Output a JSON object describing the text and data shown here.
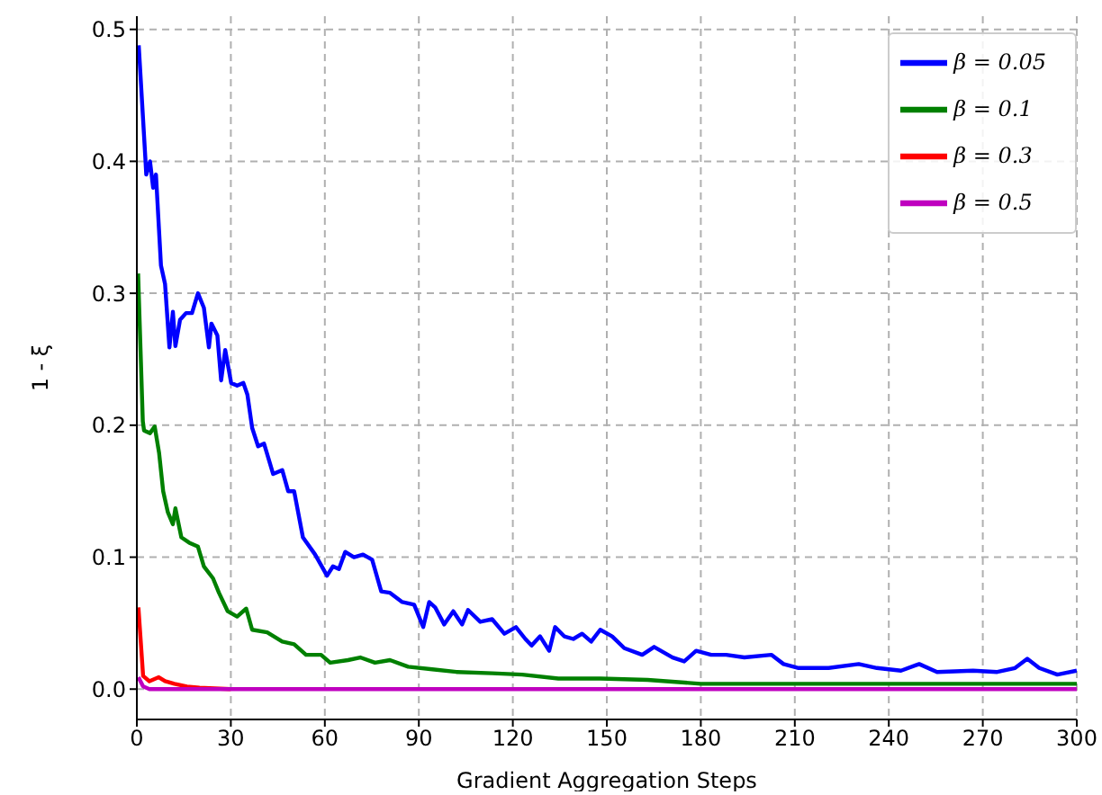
{
  "chart_data": {
    "type": "line",
    "xlabel": "Gradient Aggregation Steps",
    "ylabel": "1 - ξ",
    "xlim": [
      0,
      300
    ],
    "xticks": [
      0,
      30,
      60,
      90,
      120,
      150,
      180,
      210,
      240,
      270,
      300
    ],
    "ylim": [
      -0.023,
      0.51
    ],
    "yticks": [
      {
        "value": 0,
        "label": "0.0"
      },
      {
        "value": 0.1,
        "label": "0.1"
      },
      {
        "value": 0.2,
        "label": "0.2"
      },
      {
        "value": 0.3,
        "label": "0.3"
      },
      {
        "value": 0.4,
        "label": "0.4"
      },
      {
        "value": 0.5,
        "label": "0.5"
      }
    ],
    "grid": true,
    "legend": "top right",
    "line_style": "solid",
    "marker": "none",
    "series": [
      {
        "name": "β = 0.05",
        "color": "#0000ff",
        "x": [
          0.6,
          2.7,
          3,
          4.2,
          5.2,
          6.1,
          7.7,
          9,
          10.4,
          11.5,
          12.3,
          13.8,
          15.7,
          17.6,
          19.5,
          21.4,
          23,
          23.8,
          25.7,
          26.9,
          28.2,
          30.1,
          32,
          34,
          35.3,
          36.8,
          38.7,
          40.6,
          43.5,
          46.4,
          48.3,
          50.2,
          53,
          56.9,
          60.7,
          62.6,
          64.5,
          66.5,
          69.3,
          72.2,
          75.1,
          78,
          80.8,
          84.7,
          88.5,
          91.4,
          93.3,
          95.2,
          98.1,
          101,
          103.8,
          105.7,
          109.6,
          113.4,
          117.3,
          121,
          124,
          126,
          128.7,
          131.6,
          133.5,
          136.4,
          139.3,
          142.1,
          145,
          147.9,
          151.7,
          155.6,
          161.3,
          165.1,
          171,
          174.7,
          178.5,
          183.3,
          188.1,
          193.9,
          202.5,
          206.4,
          211.2,
          220.8,
          230.4,
          236.2,
          243.9,
          249.7,
          255.4,
          266.9,
          274.6,
          280.3,
          284.2,
          288,
          293.8,
          300
        ],
        "values": [
          0.488,
          0.403,
          0.39,
          0.4,
          0.38,
          0.39,
          0.321,
          0.307,
          0.259,
          0.286,
          0.26,
          0.28,
          0.285,
          0.285,
          0.3,
          0.289,
          0.259,
          0.277,
          0.268,
          0.234,
          0.257,
          0.232,
          0.23,
          0.232,
          0.223,
          0.198,
          0.184,
          0.186,
          0.163,
          0.166,
          0.15,
          0.15,
          0.115,
          0.102,
          0.086,
          0.093,
          0.091,
          0.104,
          0.1,
          0.102,
          0.098,
          0.074,
          0.073,
          0.066,
          0.064,
          0.047,
          0.066,
          0.062,
          0.049,
          0.059,
          0.049,
          0.06,
          0.051,
          0.053,
          0.042,
          0.047,
          0.038,
          0.033,
          0.04,
          0.029,
          0.047,
          0.04,
          0.038,
          0.042,
          0.036,
          0.045,
          0.04,
          0.031,
          0.026,
          0.032,
          0.024,
          0.021,
          0.029,
          0.026,
          0.026,
          0.024,
          0.026,
          0.019,
          0.016,
          0.016,
          0.019,
          0.016,
          0.014,
          0.019,
          0.013,
          0.014,
          0.013,
          0.016,
          0.023,
          0.016,
          0.011,
          0.014
        ]
      },
      {
        "name": "β = 0.1",
        "color": "#008000",
        "x": [
          0.4,
          1.9,
          2.3,
          4.2,
          5.7,
          7.1,
          8.4,
          9.9,
          11.5,
          12.3,
          14.2,
          16.7,
          19.5,
          21.4,
          24.3,
          26.2,
          29,
          32,
          34.9,
          36.8,
          41.6,
          46.4,
          50.2,
          54,
          58.8,
          61.7,
          67.4,
          71.3,
          76,
          80.8,
          86.6,
          94.3,
          102,
          113.4,
          123,
          134.5,
          147.9,
          163,
          180,
          220,
          260,
          300
        ],
        "values": [
          0.315,
          0.203,
          0.196,
          0.194,
          0.199,
          0.179,
          0.15,
          0.134,
          0.125,
          0.137,
          0.115,
          0.111,
          0.108,
          0.093,
          0.084,
          0.073,
          0.059,
          0.055,
          0.061,
          0.045,
          0.043,
          0.036,
          0.034,
          0.026,
          0.026,
          0.02,
          0.022,
          0.024,
          0.02,
          0.022,
          0.017,
          0.015,
          0.013,
          0.012,
          0.011,
          0.008,
          0.008,
          0.007,
          0.004,
          0.004,
          0.004,
          0.004
        ]
      },
      {
        "name": "β = 0.3",
        "color": "#ff0000",
        "x": [
          0.5,
          2,
          4,
          7,
          9,
          12,
          16,
          20,
          30
        ],
        "values": [
          0.062,
          0.01,
          0.006,
          0.009,
          0.006,
          0.004,
          0.002,
          0.001,
          0
        ]
      },
      {
        "name": "β = 0.5",
        "color": "#bf00bf",
        "x": [
          0.5,
          2,
          4,
          300
        ],
        "values": [
          0.009,
          0.002,
          0,
          0
        ]
      }
    ]
  }
}
